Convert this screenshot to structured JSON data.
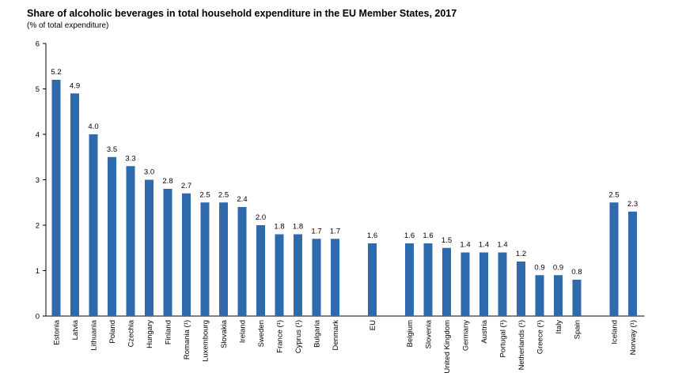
{
  "chart_data": {
    "type": "bar",
    "title": "Share of alcoholic beverages in total household expenditure in the EU Member States, 2017",
    "subtitle": "(% of total expenditure)",
    "ylim": [
      0,
      6
    ],
    "yticks": [
      0,
      1,
      2,
      3,
      4,
      5,
      6
    ],
    "grid": false,
    "bar_color": "#2e6aac",
    "categories": [
      "Estonia",
      "Latvia",
      "Lithuania",
      "Poland",
      "Czechia",
      "Hungary",
      "Finland",
      "Romania (¹)",
      "Luxembourg",
      "Slovakia",
      "Ireland",
      "Sweden",
      "France (¹)",
      "Cyprus (¹)",
      "Bulgaria",
      "Denmark",
      "",
      "EU",
      "",
      "Belgium",
      "Slovenia",
      "United Kingdom",
      "Germany",
      "Austria",
      "Portugal (¹)",
      "Netherlands (¹)",
      "Greece (¹)",
      "Italy",
      "Spain",
      "",
      "Iceland",
      "Norway (¹)"
    ],
    "values": [
      5.2,
      4.9,
      4.0,
      3.5,
      3.3,
      3.0,
      2.8,
      2.7,
      2.5,
      2.5,
      2.4,
      2.0,
      1.8,
      1.8,
      1.7,
      1.7,
      null,
      1.6,
      null,
      1.6,
      1.6,
      1.5,
      1.4,
      1.4,
      1.4,
      1.2,
      0.9,
      0.9,
      0.8,
      null,
      2.5,
      2.3
    ],
    "value_labels": [
      "5.2",
      "4.9",
      "4.0",
      "3.5",
      "3.3",
      "3.0",
      "2.8",
      "2.7",
      "2.5",
      "2.5",
      "2.4",
      "2.0",
      "1.8",
      "1.8",
      "1.7",
      "1.7",
      "",
      "1.6",
      "",
      "1.6",
      "1.6",
      "1.5",
      "1.4",
      "1.4",
      "1.4",
      "1.2",
      "0.9",
      "0.9",
      "0.8",
      "",
      "2.5",
      "2.3"
    ]
  }
}
